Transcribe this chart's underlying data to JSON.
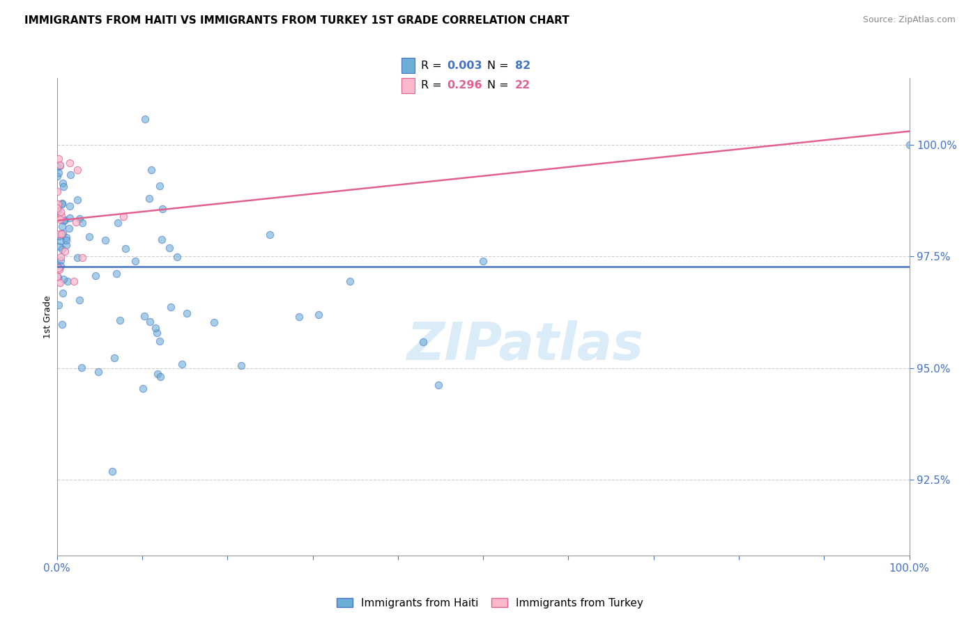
{
  "title": "IMMIGRANTS FROM HAITI VS IMMIGRANTS FROM TURKEY 1ST GRADE CORRELATION CHART",
  "source": "Source: ZipAtlas.com",
  "ylabel": "1st Grade",
  "right_yticks": [
    92.5,
    95.0,
    97.5,
    100.0
  ],
  "legend_haiti_R": 0.003,
  "legend_haiti_N": 82,
  "legend_turkey_R": 0.296,
  "legend_turkey_N": 22,
  "xlim": [
    0,
    100
  ],
  "ylim": [
    90.8,
    101.5
  ],
  "blue_line_y": 97.27,
  "pink_line_x0": 0,
  "pink_line_x1": 100,
  "pink_line_y0": 98.3,
  "pink_line_y1": 100.3,
  "haiti_color": "#6baed6",
  "haiti_edge": "#4472c4",
  "turkey_color": "#fcb9cc",
  "turkey_edge": "#e06090",
  "line_blue": "#4472c4",
  "line_pink": "#e06090",
  "tick_color": "#4472c4",
  "grid_color": "#c8c8c8",
  "title_fontsize": 11,
  "scatter_size": 55,
  "watermark_text": "ZIPatlas",
  "watermark_color": "#d5eaf7"
}
